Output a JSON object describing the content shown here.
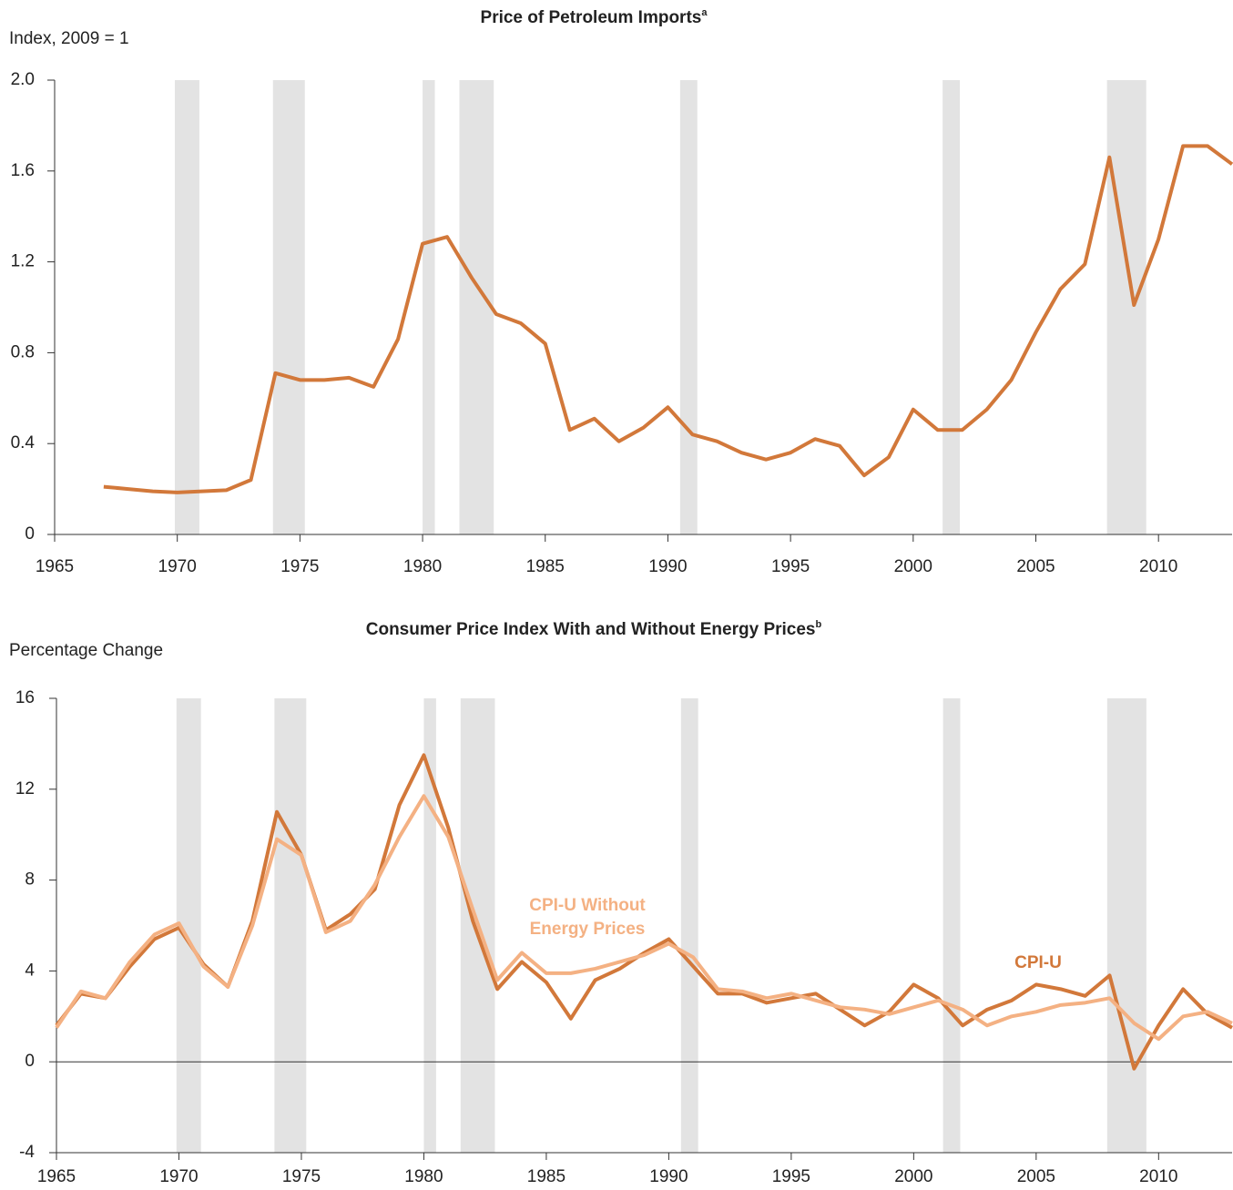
{
  "chart_data": [
    {
      "type": "line",
      "title": "Price of Petroleum Imports",
      "title_note": "a",
      "y_label": "Index, 2009 = 1",
      "x": [
        1967,
        1968,
        1969,
        1970,
        1971,
        1972,
        1973,
        1974,
        1975,
        1976,
        1977,
        1978,
        1979,
        1980,
        1981,
        1982,
        1983,
        1984,
        1985,
        1986,
        1987,
        1988,
        1989,
        1990,
        1991,
        1992,
        1993,
        1994,
        1995,
        1996,
        1997,
        1998,
        1999,
        2000,
        2001,
        2002,
        2003,
        2004,
        2005,
        2006,
        2007,
        2008,
        2009,
        2010,
        2011,
        2012,
        2013
      ],
      "values": [
        0.21,
        0.2,
        0.19,
        0.185,
        0.19,
        0.195,
        0.24,
        0.71,
        0.68,
        0.68,
        0.69,
        0.65,
        0.86,
        1.28,
        1.31,
        1.13,
        0.97,
        0.93,
        0.84,
        0.46,
        0.51,
        0.41,
        0.47,
        0.56,
        0.44,
        0.41,
        0.36,
        0.33,
        0.36,
        0.42,
        0.39,
        0.26,
        0.34,
        0.55,
        0.46,
        0.46,
        0.55,
        0.68,
        0.89,
        1.08,
        1.19,
        1.66,
        1.01,
        1.3,
        1.71,
        1.71,
        1.63
      ],
      "color": "#d2783a",
      "xlim": [
        1965,
        2013
      ],
      "xticks": [
        1965,
        1970,
        1975,
        1980,
        1985,
        1990,
        1995,
        2000,
        2005,
        2010
      ],
      "ylim": [
        0,
        2
      ],
      "yticks": [
        0,
        0.4,
        0.8,
        1.2,
        1.6,
        {
          "value": 2,
          "label": "2.0"
        }
      ],
      "shaded_periods": [
        [
          1969.9,
          1970.9
        ],
        [
          1973.9,
          1975.2
        ],
        [
          1980.0,
          1980.5
        ],
        [
          1981.5,
          1982.9
        ],
        [
          1990.5,
          1991.2
        ],
        [
          2001.2,
          2001.9
        ],
        [
          2007.9,
          2009.5
        ]
      ],
      "shade_color": "#e3e3e3"
    },
    {
      "type": "line",
      "title": "Consumer Price Index With and Without Energy Prices",
      "title_note": "b",
      "y_label": "Percentage Change",
      "x": [
        1965,
        1966,
        1967,
        1968,
        1969,
        1970,
        1971,
        1972,
        1973,
        1974,
        1975,
        1976,
        1977,
        1978,
        1979,
        1980,
        1981,
        1982,
        1983,
        1984,
        1985,
        1986,
        1987,
        1988,
        1989,
        1990,
        1991,
        1992,
        1993,
        1994,
        1995,
        1996,
        1997,
        1998,
        1999,
        2000,
        2001,
        2002,
        2003,
        2004,
        2005,
        2006,
        2007,
        2008,
        2009,
        2010,
        2011,
        2012,
        2013
      ],
      "series": [
        {
          "name": "CPI-U",
          "color": "#d2783a",
          "values": [
            1.6,
            3.0,
            2.8,
            4.2,
            5.4,
            5.9,
            4.3,
            3.3,
            6.2,
            11,
            9.1,
            5.8,
            6.5,
            7.6,
            11.3,
            13.5,
            10.3,
            6.2,
            3.2,
            4.4,
            3.5,
            1.9,
            3.6,
            4.1,
            4.8,
            5.4,
            4.2,
            3.0,
            3.0,
            2.6,
            2.8,
            3.0,
            2.3,
            1.6,
            2.2,
            3.4,
            2.8,
            1.6,
            2.3,
            2.7,
            3.4,
            3.2,
            2.9,
            3.8,
            -0.3,
            1.6,
            3.2,
            2.1,
            1.5
          ]
        },
        {
          "name": "CPI-U Without Energy Prices",
          "color": "#f4b183",
          "values": [
            1.5,
            3.1,
            2.8,
            4.4,
            5.6,
            6.1,
            4.2,
            3.3,
            6.0,
            9.8,
            9.1,
            5.7,
            6.2,
            7.8,
            9.9,
            11.7,
            9.9,
            6.7,
            3.6,
            4.8,
            3.9,
            3.9,
            4.1,
            4.4,
            4.7,
            5.2,
            4.6,
            3.2,
            3.1,
            2.8,
            3.0,
            2.7,
            2.4,
            2.3,
            2.1,
            2.4,
            2.7,
            2.3,
            1.6,
            2.0,
            2.2,
            2.5,
            2.6,
            2.8,
            1.7,
            1.0,
            2.0,
            2.2,
            1.7
          ]
        }
      ],
      "xlim": [
        1965,
        2013
      ],
      "xticks": [
        1965,
        1970,
        1975,
        1980,
        1985,
        1990,
        1995,
        2000,
        2005,
        2010
      ],
      "ylim": [
        -4,
        16
      ],
      "yticks": [
        -4,
        0,
        4,
        8,
        12,
        16
      ],
      "zero_line": true,
      "shaded_periods": [
        [
          1969.9,
          1970.9
        ],
        [
          1973.9,
          1975.2
        ],
        [
          1980.0,
          1980.5
        ],
        [
          1981.5,
          1982.9
        ],
        [
          1990.5,
          1991.2
        ],
        [
          2001.2,
          2001.9
        ],
        [
          2007.9,
          2009.5
        ]
      ],
      "shade_color": "#e3e3e3"
    }
  ]
}
